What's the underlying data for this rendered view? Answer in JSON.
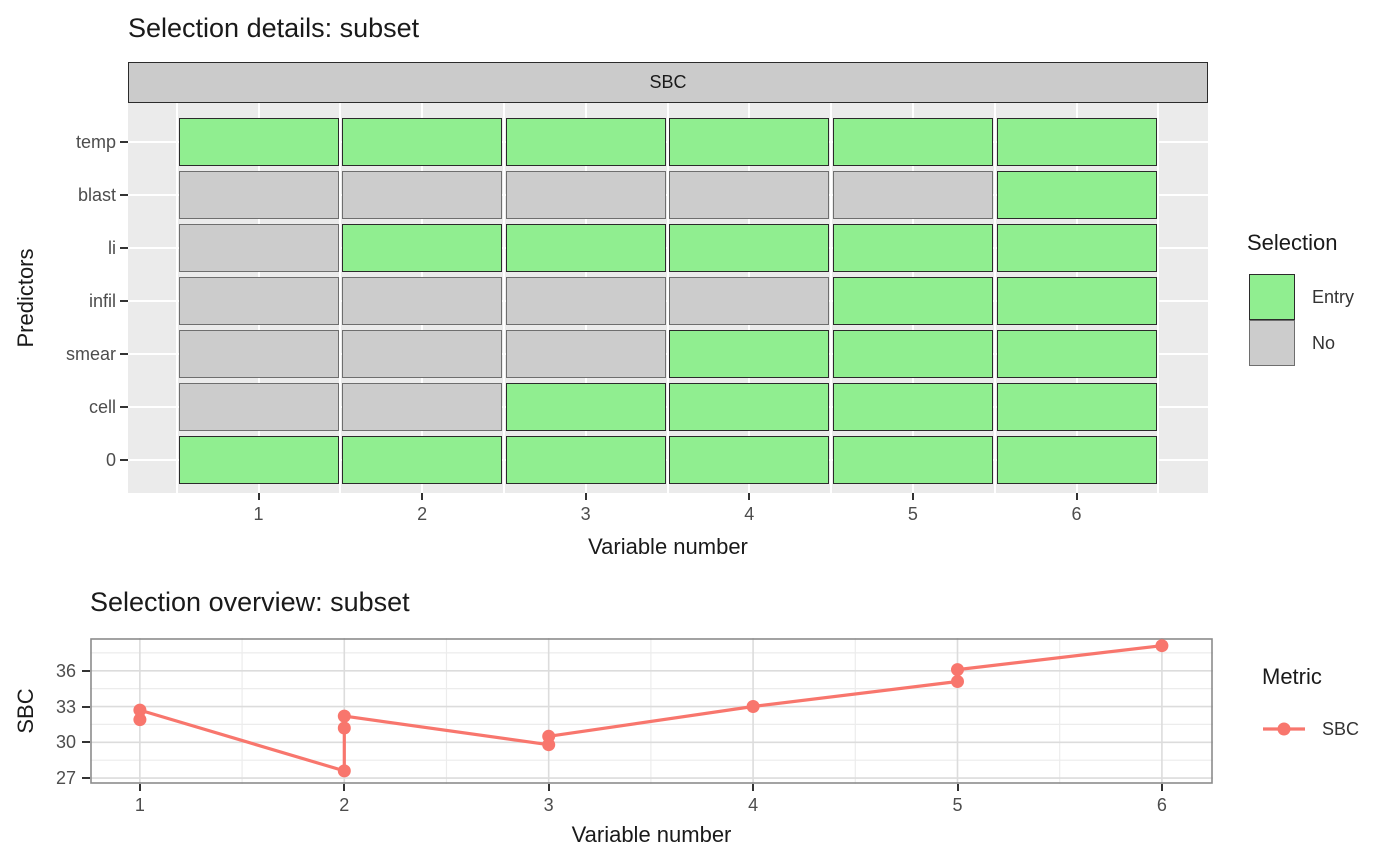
{
  "colors": {
    "entry_green": "#90EE90",
    "no_grey": "#CCCCCC",
    "metric_line": "#F8766D",
    "panel_bg": "#EBEBEB",
    "strip_bg": "#CBCBCB",
    "grid_major": "#DCDCDC",
    "grid_minor": "#ECECEC",
    "panel_border": "#8C8C8C",
    "tick_label": "#4D4D4D"
  },
  "chart_data": [
    {
      "type": "heatmap",
      "title": "Selection details: subset",
      "facet_label": "SBC",
      "xlabel": "Variable number",
      "ylabel": "Predictors",
      "x_ticks": [
        "1",
        "2",
        "3",
        "4",
        "5",
        "6"
      ],
      "y_categories": [
        "temp",
        "blast",
        "li",
        "infil",
        "smear",
        "cell",
        "0"
      ],
      "legend": {
        "title": "Selection",
        "position": "right",
        "entries": [
          {
            "label": "Entry",
            "color": "#90EE90",
            "border": "#2B2B2B"
          },
          {
            "label": "No",
            "color": "#CCCCCC",
            "border": "#6E6E6E"
          }
        ]
      },
      "cell_values": [
        [
          "Entry",
          "Entry",
          "Entry",
          "Entry",
          "Entry",
          "Entry"
        ],
        [
          "No",
          "No",
          "No",
          "No",
          "No",
          "Entry"
        ],
        [
          "No",
          "Entry",
          "Entry",
          "Entry",
          "Entry",
          "Entry"
        ],
        [
          "No",
          "No",
          "No",
          "No",
          "Entry",
          "Entry"
        ],
        [
          "No",
          "No",
          "No",
          "Entry",
          "Entry",
          "Entry"
        ],
        [
          "No",
          "No",
          "Entry",
          "Entry",
          "Entry",
          "Entry"
        ],
        [
          "Entry",
          "Entry",
          "Entry",
          "Entry",
          "Entry",
          "Entry"
        ]
      ]
    },
    {
      "type": "line",
      "title": "Selection overview: subset",
      "xlabel": "Variable number",
      "ylabel": "SBC",
      "x_ticks": [
        1,
        2,
        3,
        4,
        5,
        6
      ],
      "y_ticks": [
        27,
        30,
        33,
        36
      ],
      "xlim": [
        0.756,
        6.25
      ],
      "ylim": [
        26.5,
        38.75
      ],
      "grid": true,
      "legend": {
        "title": "Metric",
        "position": "right",
        "entries": [
          {
            "label": "SBC",
            "color": "#F8766D"
          }
        ]
      },
      "series": [
        {
          "name": "SBC",
          "color": "#F8766D",
          "points": [
            [
              1,
              31.9
            ],
            [
              1,
              32.7
            ],
            [
              2,
              27.6
            ],
            [
              2,
              31.2
            ],
            [
              2,
              32.2
            ],
            [
              3,
              29.8
            ],
            [
              3,
              30.5
            ],
            [
              4,
              33.0
            ],
            [
              5,
              35.1
            ],
            [
              5,
              36.1
            ],
            [
              6,
              38.1
            ]
          ]
        }
      ]
    }
  ]
}
